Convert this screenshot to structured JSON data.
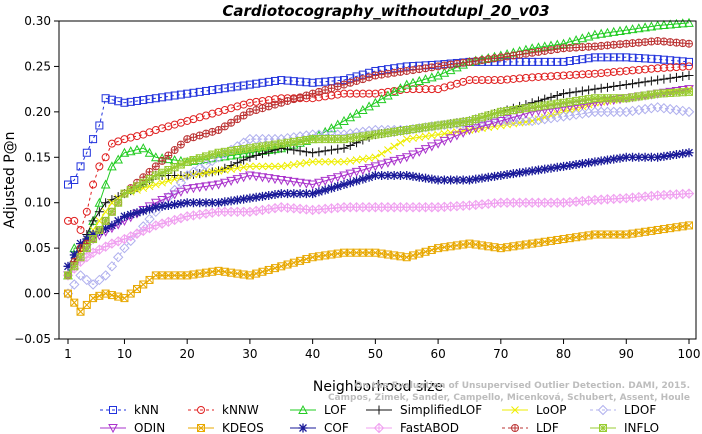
{
  "chart_data": {
    "type": "line",
    "title": "Cardiotocography_withoutdupl_20_v03",
    "xlabel": "Neighborhood size",
    "ylabel": "Adjusted P@n",
    "xlim": [
      1,
      100
    ],
    "ylim": [
      -0.05,
      0.3
    ],
    "xticks": [
      1,
      10,
      20,
      30,
      40,
      50,
      60,
      70,
      80,
      90,
      100
    ],
    "yticks": [
      -0.05,
      0.0,
      0.05,
      0.1,
      0.15,
      0.2,
      0.25,
      0.3
    ],
    "ytick_labels": [
      "−0.05",
      "0.00",
      "0.05",
      "0.10",
      "0.15",
      "0.20",
      "0.25",
      "0.30"
    ],
    "grid": false,
    "legend_position": "bottom",
    "watermark": [
      "Campos, Zimek, Sander, Campello, Micenková, Schubert, Assent, Houle",
      "On the Evaluation of Unsupervised Outlier Detection. DAMI, 2015."
    ],
    "series": [
      {
        "name": "kNN",
        "marker": "square",
        "color": "#2233dd",
        "dashed": true,
        "points": [
          [
            1,
            0.12
          ],
          [
            2,
            0.125
          ],
          [
            3,
            0.14
          ],
          [
            4,
            0.155
          ],
          [
            5,
            0.17
          ],
          [
            6,
            0.185
          ],
          [
            7,
            0.215
          ],
          [
            10,
            0.21
          ],
          [
            15,
            0.215
          ],
          [
            20,
            0.22
          ],
          [
            25,
            0.225
          ],
          [
            30,
            0.23
          ],
          [
            35,
            0.235
          ],
          [
            40,
            0.232
          ],
          [
            45,
            0.235
          ],
          [
            50,
            0.245
          ],
          [
            55,
            0.25
          ],
          [
            60,
            0.252
          ],
          [
            65,
            0.255
          ],
          [
            70,
            0.255
          ],
          [
            75,
            0.255
          ],
          [
            80,
            0.255
          ],
          [
            85,
            0.26
          ],
          [
            90,
            0.26
          ],
          [
            95,
            0.258
          ],
          [
            100,
            0.255
          ]
        ]
      },
      {
        "name": "kNNW",
        "marker": "circle",
        "color": "#e02020",
        "dashed": true,
        "points": [
          [
            1,
            0.08
          ],
          [
            2,
            0.08
          ],
          [
            3,
            0.07
          ],
          [
            4,
            0.09
          ],
          [
            5,
            0.12
          ],
          [
            6,
            0.14
          ],
          [
            7,
            0.15
          ],
          [
            8,
            0.165
          ],
          [
            10,
            0.17
          ],
          [
            13,
            0.175
          ],
          [
            15,
            0.18
          ],
          [
            20,
            0.19
          ],
          [
            25,
            0.2
          ],
          [
            30,
            0.21
          ],
          [
            35,
            0.215
          ],
          [
            40,
            0.215
          ],
          [
            45,
            0.22
          ],
          [
            50,
            0.22
          ],
          [
            55,
            0.225
          ],
          [
            60,
            0.225
          ],
          [
            65,
            0.235
          ],
          [
            70,
            0.235
          ],
          [
            75,
            0.238
          ],
          [
            80,
            0.24
          ],
          [
            85,
            0.242
          ],
          [
            90,
            0.245
          ],
          [
            95,
            0.248
          ],
          [
            100,
            0.25
          ]
        ]
      },
      {
        "name": "LOF",
        "marker": "triangle",
        "color": "#22cc22",
        "dashed": false,
        "points": [
          [
            1,
            0.02
          ],
          [
            2,
            0.05
          ],
          [
            3,
            0.05
          ],
          [
            4,
            0.06
          ],
          [
            5,
            0.08
          ],
          [
            6,
            0.1
          ],
          [
            7,
            0.12
          ],
          [
            8,
            0.14
          ],
          [
            10,
            0.155
          ],
          [
            13,
            0.16
          ],
          [
            15,
            0.15
          ],
          [
            20,
            0.145
          ],
          [
            25,
            0.15
          ],
          [
            30,
            0.155
          ],
          [
            35,
            0.16
          ],
          [
            40,
            0.17
          ],
          [
            45,
            0.19
          ],
          [
            50,
            0.21
          ],
          [
            55,
            0.23
          ],
          [
            60,
            0.24
          ],
          [
            65,
            0.255
          ],
          [
            70,
            0.262
          ],
          [
            75,
            0.27
          ],
          [
            80,
            0.275
          ],
          [
            85,
            0.285
          ],
          [
            90,
            0.29
          ],
          [
            95,
            0.295
          ],
          [
            100,
            0.298
          ]
        ]
      },
      {
        "name": "SimplifiedLOF",
        "marker": "plus",
        "color": "#111111",
        "dashed": false,
        "points": [
          [
            1,
            0.02
          ],
          [
            3,
            0.05
          ],
          [
            5,
            0.08
          ],
          [
            7,
            0.1
          ],
          [
            10,
            0.11
          ],
          [
            13,
            0.12
          ],
          [
            15,
            0.13
          ],
          [
            20,
            0.13
          ],
          [
            25,
            0.135
          ],
          [
            30,
            0.15
          ],
          [
            35,
            0.16
          ],
          [
            40,
            0.155
          ],
          [
            45,
            0.16
          ],
          [
            50,
            0.175
          ],
          [
            55,
            0.18
          ],
          [
            60,
            0.185
          ],
          [
            65,
            0.19
          ],
          [
            70,
            0.2
          ],
          [
            75,
            0.21
          ],
          [
            80,
            0.22
          ],
          [
            85,
            0.225
          ],
          [
            90,
            0.23
          ],
          [
            95,
            0.235
          ],
          [
            100,
            0.24
          ]
        ]
      },
      {
        "name": "LoOP",
        "marker": "x",
        "color": "#eeee00",
        "dashed": false,
        "points": [
          [
            1,
            0.02
          ],
          [
            3,
            0.045
          ],
          [
            5,
            0.07
          ],
          [
            8,
            0.1
          ],
          [
            10,
            0.11
          ],
          [
            15,
            0.12
          ],
          [
            20,
            0.13
          ],
          [
            25,
            0.135
          ],
          [
            30,
            0.14
          ],
          [
            35,
            0.14
          ],
          [
            40,
            0.145
          ],
          [
            45,
            0.145
          ],
          [
            50,
            0.15
          ],
          [
            55,
            0.17
          ],
          [
            60,
            0.175
          ],
          [
            65,
            0.18
          ],
          [
            70,
            0.185
          ],
          [
            75,
            0.19
          ],
          [
            80,
            0.2
          ],
          [
            85,
            0.21
          ],
          [
            90,
            0.215
          ],
          [
            95,
            0.22
          ],
          [
            100,
            0.225
          ]
        ]
      },
      {
        "name": "LDOF",
        "marker": "diamond",
        "color": "#b0b0ee",
        "dashed": true,
        "points": [
          [
            1,
            0.0
          ],
          [
            3,
            0.02
          ],
          [
            5,
            0.01
          ],
          [
            7,
            0.02
          ],
          [
            10,
            0.05
          ],
          [
            15,
            0.09
          ],
          [
            20,
            0.13
          ],
          [
            25,
            0.15
          ],
          [
            30,
            0.17
          ],
          [
            35,
            0.17
          ],
          [
            40,
            0.175
          ],
          [
            45,
            0.175
          ],
          [
            50,
            0.18
          ],
          [
            55,
            0.18
          ],
          [
            60,
            0.185
          ],
          [
            65,
            0.188
          ],
          [
            70,
            0.19
          ],
          [
            75,
            0.19
          ],
          [
            80,
            0.195
          ],
          [
            85,
            0.2
          ],
          [
            90,
            0.2
          ],
          [
            95,
            0.205
          ],
          [
            100,
            0.2
          ]
        ]
      },
      {
        "name": "ODIN",
        "marker": "triangle-down",
        "color": "#aa33cc",
        "dashed": false,
        "points": [
          [
            1,
            0.02
          ],
          [
            3,
            0.04
          ],
          [
            5,
            0.06
          ],
          [
            10,
            0.08
          ],
          [
            15,
            0.1
          ],
          [
            20,
            0.115
          ],
          [
            25,
            0.12
          ],
          [
            30,
            0.13
          ],
          [
            35,
            0.125
          ],
          [
            40,
            0.12
          ],
          [
            45,
            0.13
          ],
          [
            50,
            0.14
          ],
          [
            55,
            0.15
          ],
          [
            60,
            0.165
          ],
          [
            65,
            0.18
          ],
          [
            70,
            0.19
          ],
          [
            75,
            0.2
          ],
          [
            80,
            0.205
          ],
          [
            85,
            0.21
          ],
          [
            90,
            0.215
          ],
          [
            95,
            0.22
          ],
          [
            100,
            0.225
          ]
        ]
      },
      {
        "name": "KDEOS",
        "marker": "square-x",
        "color": "#e8a800",
        "dashed": false,
        "points": [
          [
            1,
            0.0
          ],
          [
            2,
            -0.01
          ],
          [
            3,
            -0.02
          ],
          [
            5,
            -0.005
          ],
          [
            7,
            0.0
          ],
          [
            10,
            -0.005
          ],
          [
            13,
            0.01
          ],
          [
            15,
            0.02
          ],
          [
            20,
            0.02
          ],
          [
            25,
            0.025
          ],
          [
            30,
            0.02
          ],
          [
            35,
            0.03
          ],
          [
            40,
            0.04
          ],
          [
            45,
            0.045
          ],
          [
            50,
            0.045
          ],
          [
            55,
            0.04
          ],
          [
            60,
            0.05
          ],
          [
            65,
            0.055
          ],
          [
            70,
            0.05
          ],
          [
            75,
            0.055
          ],
          [
            80,
            0.06
          ],
          [
            85,
            0.065
          ],
          [
            90,
            0.065
          ],
          [
            95,
            0.07
          ],
          [
            100,
            0.075
          ]
        ]
      },
      {
        "name": "COF",
        "marker": "asterisk",
        "color": "#1a1a99",
        "dashed": false,
        "points": [
          [
            1,
            0.03
          ],
          [
            3,
            0.055
          ],
          [
            5,
            0.065
          ],
          [
            8,
            0.075
          ],
          [
            10,
            0.085
          ],
          [
            15,
            0.095
          ],
          [
            20,
            0.1
          ],
          [
            25,
            0.1
          ],
          [
            30,
            0.105
          ],
          [
            35,
            0.11
          ],
          [
            40,
            0.11
          ],
          [
            45,
            0.12
          ],
          [
            50,
            0.13
          ],
          [
            55,
            0.13
          ],
          [
            60,
            0.125
          ],
          [
            65,
            0.125
          ],
          [
            70,
            0.13
          ],
          [
            75,
            0.135
          ],
          [
            80,
            0.14
          ],
          [
            85,
            0.145
          ],
          [
            90,
            0.15
          ],
          [
            95,
            0.15
          ],
          [
            100,
            0.155
          ]
        ]
      },
      {
        "name": "FastABOD",
        "marker": "diamond-plus",
        "color": "#f0a0f0",
        "dashed": false,
        "points": [
          [
            1,
            0.02
          ],
          [
            3,
            0.035
          ],
          [
            5,
            0.045
          ],
          [
            8,
            0.055
          ],
          [
            10,
            0.06
          ],
          [
            15,
            0.075
          ],
          [
            20,
            0.085
          ],
          [
            25,
            0.09
          ],
          [
            30,
            0.09
          ],
          [
            35,
            0.095
          ],
          [
            40,
            0.092
          ],
          [
            45,
            0.095
          ],
          [
            50,
            0.095
          ],
          [
            55,
            0.095
          ],
          [
            60,
            0.095
          ],
          [
            65,
            0.097
          ],
          [
            70,
            0.1
          ],
          [
            75,
            0.1
          ],
          [
            80,
            0.1
          ],
          [
            85,
            0.103
          ],
          [
            90,
            0.105
          ],
          [
            95,
            0.108
          ],
          [
            100,
            0.11
          ]
        ]
      },
      {
        "name": "LDF",
        "marker": "circle-plus",
        "color": "#bb3333",
        "dashed": true,
        "points": [
          [
            1,
            0.02
          ],
          [
            3,
            0.05
          ],
          [
            5,
            0.06
          ],
          [
            7,
            0.08
          ],
          [
            10,
            0.11
          ],
          [
            15,
            0.14
          ],
          [
            20,
            0.17
          ],
          [
            25,
            0.18
          ],
          [
            30,
            0.2
          ],
          [
            35,
            0.21
          ],
          [
            40,
            0.22
          ],
          [
            45,
            0.23
          ],
          [
            50,
            0.24
          ],
          [
            55,
            0.245
          ],
          [
            60,
            0.25
          ],
          [
            65,
            0.255
          ],
          [
            70,
            0.26
          ],
          [
            75,
            0.265
          ],
          [
            80,
            0.27
          ],
          [
            85,
            0.272
          ],
          [
            90,
            0.275
          ],
          [
            95,
            0.278
          ],
          [
            100,
            0.275
          ]
        ]
      },
      {
        "name": "INFLO",
        "marker": "square-star",
        "color": "#99cc33",
        "dashed": false,
        "points": [
          [
            1,
            0.02
          ],
          [
            3,
            0.04
          ],
          [
            5,
            0.06
          ],
          [
            8,
            0.09
          ],
          [
            10,
            0.11
          ],
          [
            15,
            0.13
          ],
          [
            20,
            0.145
          ],
          [
            25,
            0.155
          ],
          [
            30,
            0.16
          ],
          [
            35,
            0.165
          ],
          [
            40,
            0.17
          ],
          [
            45,
            0.17
          ],
          [
            50,
            0.175
          ],
          [
            55,
            0.18
          ],
          [
            60,
            0.185
          ],
          [
            65,
            0.19
          ],
          [
            70,
            0.2
          ],
          [
            75,
            0.205
          ],
          [
            80,
            0.21
          ],
          [
            85,
            0.215
          ],
          [
            90,
            0.215
          ],
          [
            95,
            0.22
          ],
          [
            100,
            0.222
          ]
        ]
      }
    ]
  }
}
